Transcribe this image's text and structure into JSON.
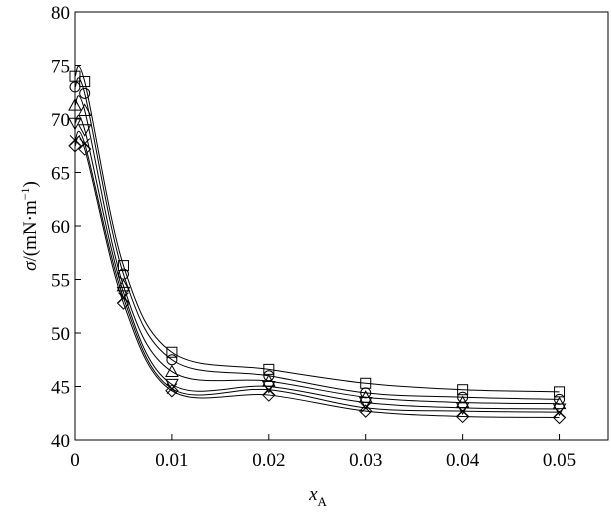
{
  "chart_data": {
    "type": "line",
    "title": "",
    "xlabel": "x",
    "xlabel_sub": "A",
    "ylabel_prefix": "σ",
    "ylabel": "/(mN·m",
    "ylabel_sup": "−1",
    "ylabel_suffix": ")",
    "xlim": [
      0,
      0.055
    ],
    "ylim": [
      40,
      80
    ],
    "xticks": [
      0,
      0.01,
      0.02,
      0.03,
      0.04,
      0.05
    ],
    "xtick_labels": [
      "0",
      "0.01",
      "0.02",
      "0.03",
      "0.04",
      "0.05"
    ],
    "yticks": [
      40,
      45,
      50,
      55,
      60,
      65,
      70,
      75,
      80
    ],
    "ytick_labels": [
      "40",
      "45",
      "50",
      "55",
      "60",
      "65",
      "70",
      "75",
      "80"
    ],
    "grid": false,
    "series": [
      {
        "marker": "square",
        "x": [
          0,
          0.001,
          0.005,
          0.01,
          0.02,
          0.03,
          0.04,
          0.05
        ],
        "y": [
          74.0,
          73.5,
          56.3,
          48.2,
          46.6,
          45.3,
          44.7,
          44.5
        ]
      },
      {
        "marker": "circle",
        "x": [
          0,
          0.001,
          0.005,
          0.01,
          0.02,
          0.03,
          0.04,
          0.05
        ],
        "y": [
          73.0,
          72.4,
          55.5,
          47.5,
          46.0,
          44.4,
          44.0,
          43.8
        ]
      },
      {
        "marker": "triangle",
        "x": [
          0,
          0.001,
          0.005,
          0.01,
          0.02,
          0.03,
          0.04,
          0.05
        ],
        "y": [
          71.3,
          70.8,
          54.4,
          46.4,
          45.5,
          44.0,
          43.5,
          43.4
        ]
      },
      {
        "marker": "triangle-down",
        "x": [
          0,
          0.001,
          0.005,
          0.01,
          0.02,
          0.03,
          0.04,
          0.05
        ],
        "y": [
          69.6,
          69.0,
          53.8,
          45.2,
          45.0,
          43.5,
          43.0,
          42.9
        ]
      },
      {
        "marker": "cross",
        "x": [
          0,
          0.001,
          0.005,
          0.01,
          0.02,
          0.03,
          0.04,
          0.05
        ],
        "y": [
          68.0,
          67.7,
          53.3,
          44.8,
          44.7,
          43.0,
          42.7,
          42.6
        ]
      },
      {
        "marker": "diamond",
        "x": [
          0,
          0.001,
          0.005,
          0.01,
          0.02,
          0.03,
          0.04,
          0.05
        ],
        "y": [
          67.5,
          67.2,
          52.8,
          44.6,
          44.2,
          42.7,
          42.2,
          42.1
        ]
      }
    ]
  }
}
